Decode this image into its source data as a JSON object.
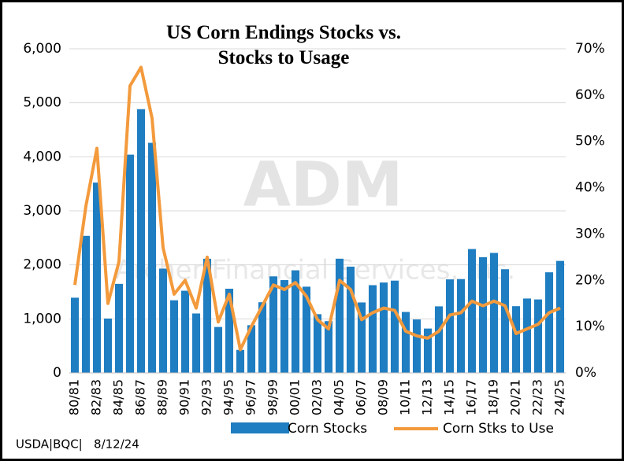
{
  "chart_data": {
    "type": "bar_line",
    "title": "US Corn Endings Stocks vs. Stocks to Usage",
    "footnote": "USDA|BQC|   8/12/24",
    "watermark": [
      "ADM",
      "Archer Financial Services, Inc."
    ],
    "categories": [
      "80/81",
      null,
      "82/83",
      null,
      "84/85",
      null,
      "86/87",
      null,
      "88/89",
      null,
      "90/91",
      null,
      "92/93",
      null,
      "94/95",
      null,
      "96/97",
      null,
      "98/99",
      null,
      "00/01",
      null,
      "02/03",
      null,
      "04/05",
      null,
      "06/07",
      null,
      "08/09",
      null,
      "10/11",
      null,
      "12/13",
      null,
      "14/15",
      null,
      "16/17",
      null,
      "18/19",
      null,
      "20/21",
      null,
      "22/23",
      null,
      "24/25"
    ],
    "series": [
      {
        "name": "Corn Stocks",
        "type": "bar",
        "color": "#1f7dc1",
        "values": [
          1392,
          2537,
          3523,
          1006,
          1648,
          4040,
          4882,
          4259,
          1930,
          1344,
          1521,
          1100,
          2113,
          850,
          1558,
          426,
          883,
          1308,
          1787,
          1718,
          1899,
          1596,
          1087,
          958,
          2114,
          1967,
          1304,
          1624,
          1673,
          1708,
          1128,
          989,
          821,
          1232,
          1731,
          1737,
          2293,
          2141,
          2221,
          1919,
          1235,
          1377,
          1360,
          1862,
          2073
        ]
      },
      {
        "name": "Corn Stks to Use",
        "type": "line",
        "axis": "y2",
        "color": "#f39a3c",
        "values": [
          19,
          36,
          48.5,
          15,
          24,
          62,
          66,
          55,
          27,
          17,
          20,
          14,
          25,
          11,
          17,
          5,
          10,
          14.5,
          19,
          18,
          19.5,
          16.5,
          11.5,
          9.5,
          20,
          18,
          11.5,
          13,
          14,
          13.5,
          9,
          8,
          7.5,
          9,
          12.5,
          13,
          15.5,
          14.5,
          15.5,
          14.5,
          8.5,
          9.5,
          10.5,
          13,
          14
        ]
      }
    ],
    "ylim": [
      0,
      6000
    ],
    "yticks": [
      0,
      {
        "value": 1000,
        "label": "1,000"
      },
      {
        "value": 2000,
        "label": "2,000"
      },
      {
        "value": 3000,
        "label": "3,000"
      },
      {
        "value": 4000,
        "label": "4,000"
      },
      {
        "value": 5000,
        "label": "5,000"
      },
      {
        "value": 6000,
        "label": "6,000"
      }
    ],
    "y2lim": [
      0,
      70
    ],
    "y2ticks": [
      {
        "value": 0,
        "label": "0%"
      },
      {
        "value": 10,
        "label": "10%"
      },
      {
        "value": 20,
        "label": "20%"
      },
      {
        "value": 30,
        "label": "30%"
      },
      {
        "value": 40,
        "label": "40%"
      },
      {
        "value": 50,
        "label": "50%"
      },
      {
        "value": 60,
        "label": "60%"
      },
      {
        "value": 70,
        "label": "70%"
      }
    ],
    "grid": true
  }
}
